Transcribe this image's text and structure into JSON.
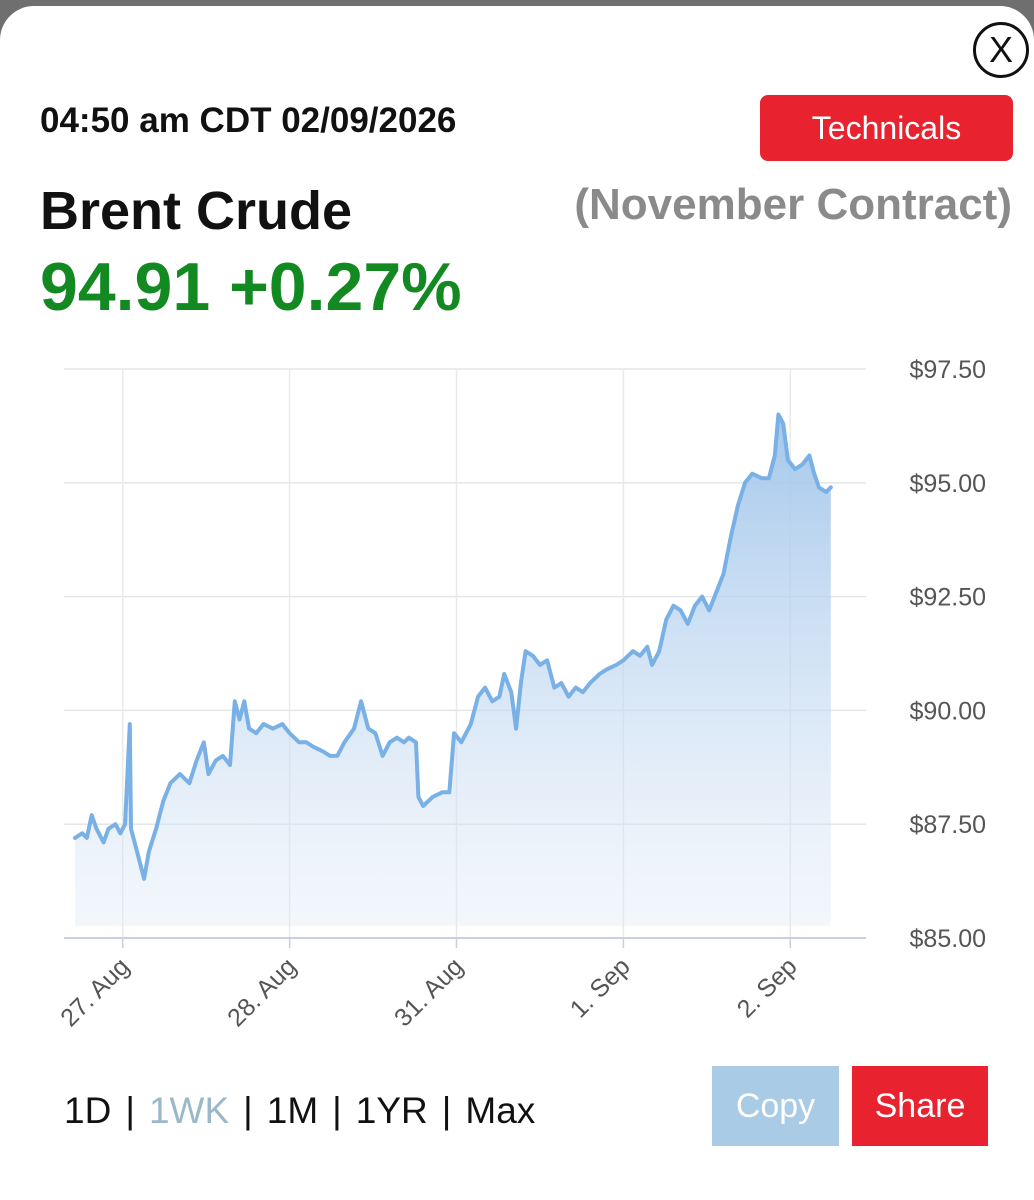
{
  "header": {
    "close_label": "X",
    "timestamp": "04:50 am CDT 02/09/2026",
    "technicals_label": "Technicals",
    "instrument": "Brent Crude",
    "contract": "(November Contract)",
    "price": "94.91",
    "change": "+0.27%"
  },
  "colors": {
    "up": "#138a21",
    "accent_red": "#e8232f",
    "line": "#79b0e6",
    "copy_button": "#a9cbe6"
  },
  "ranges": {
    "items": [
      "1D",
      "1WK",
      "1M",
      "1YR",
      "Max"
    ],
    "active": "1WK"
  },
  "actions": {
    "copy_label": "Copy",
    "share_label": "Share"
  },
  "chart_data": {
    "type": "area",
    "title": "",
    "xlabel": "",
    "ylabel": "",
    "ylim": [
      85,
      97.5
    ],
    "y_ticks": [
      97.5,
      95,
      92.5,
      90,
      87.5,
      85
    ],
    "y_tick_labels": [
      "$97.50",
      "$95.00",
      "$92.50",
      "$90.00",
      "$87.50",
      "$85.00"
    ],
    "x_ticks": [
      {
        "label": "27. Aug",
        "x": 2.0
      },
      {
        "label": "28. Aug",
        "x": 9.0
      },
      {
        "label": "31. Aug",
        "x": 16.0
      },
      {
        "label": "1. Sep",
        "x": 23.0
      },
      {
        "label": "2. Sep",
        "x": 30.0
      }
    ],
    "xlim": [
      0,
      32
    ],
    "grid": true,
    "series": [
      {
        "values": [
          [
            0.0,
            87.2
          ],
          [
            0.3,
            87.3
          ],
          [
            0.5,
            87.2
          ],
          [
            0.7,
            87.7
          ],
          [
            0.9,
            87.4
          ],
          [
            1.2,
            87.1
          ],
          [
            1.4,
            87.4
          ],
          [
            1.7,
            87.5
          ],
          [
            1.9,
            87.3
          ],
          [
            2.1,
            87.5
          ],
          [
            2.3,
            89.7
          ],
          [
            2.35,
            87.4
          ],
          [
            2.6,
            86.9
          ],
          [
            2.9,
            86.3
          ],
          [
            3.1,
            86.9
          ],
          [
            3.4,
            87.4
          ],
          [
            3.7,
            88.0
          ],
          [
            4.0,
            88.4
          ],
          [
            4.4,
            88.6
          ],
          [
            4.8,
            88.4
          ],
          [
            5.1,
            88.9
          ],
          [
            5.4,
            89.3
          ],
          [
            5.6,
            88.6
          ],
          [
            5.9,
            88.9
          ],
          [
            6.2,
            89.0
          ],
          [
            6.5,
            88.8
          ],
          [
            6.7,
            90.2
          ],
          [
            6.9,
            89.8
          ],
          [
            7.1,
            90.2
          ],
          [
            7.3,
            89.6
          ],
          [
            7.6,
            89.5
          ],
          [
            7.9,
            89.7
          ],
          [
            8.3,
            89.6
          ],
          [
            8.7,
            89.7
          ],
          [
            9.0,
            89.5
          ],
          [
            9.4,
            89.3
          ],
          [
            9.7,
            89.3
          ],
          [
            10.0,
            89.2
          ],
          [
            10.4,
            89.1
          ],
          [
            10.7,
            89.0
          ],
          [
            11.0,
            89.0
          ],
          [
            11.3,
            89.3
          ],
          [
            11.7,
            89.6
          ],
          [
            12.0,
            90.2
          ],
          [
            12.3,
            89.6
          ],
          [
            12.6,
            89.5
          ],
          [
            12.9,
            89.0
          ],
          [
            13.2,
            89.3
          ],
          [
            13.5,
            89.4
          ],
          [
            13.8,
            89.3
          ],
          [
            14.0,
            89.4
          ],
          [
            14.3,
            89.3
          ],
          [
            14.4,
            88.1
          ],
          [
            14.6,
            87.9
          ],
          [
            15.0,
            88.1
          ],
          [
            15.4,
            88.2
          ],
          [
            15.7,
            88.2
          ],
          [
            15.9,
            89.5
          ],
          [
            16.2,
            89.3
          ],
          [
            16.6,
            89.7
          ],
          [
            16.9,
            90.3
          ],
          [
            17.2,
            90.5
          ],
          [
            17.5,
            90.2
          ],
          [
            17.8,
            90.3
          ],
          [
            18.0,
            90.8
          ],
          [
            18.3,
            90.4
          ],
          [
            18.5,
            89.6
          ],
          [
            18.7,
            90.6
          ],
          [
            18.9,
            91.3
          ],
          [
            19.2,
            91.2
          ],
          [
            19.5,
            91.0
          ],
          [
            19.8,
            91.1
          ],
          [
            20.1,
            90.5
          ],
          [
            20.4,
            90.6
          ],
          [
            20.7,
            90.3
          ],
          [
            21.0,
            90.5
          ],
          [
            21.3,
            90.4
          ],
          [
            21.6,
            90.6
          ],
          [
            22.0,
            90.8
          ],
          [
            22.3,
            90.9
          ],
          [
            22.7,
            91.0
          ],
          [
            23.0,
            91.1
          ],
          [
            23.4,
            91.3
          ],
          [
            23.7,
            91.2
          ],
          [
            24.0,
            91.4
          ],
          [
            24.2,
            91.0
          ],
          [
            24.5,
            91.3
          ],
          [
            24.8,
            92.0
          ],
          [
            25.1,
            92.3
          ],
          [
            25.4,
            92.2
          ],
          [
            25.7,
            91.9
          ],
          [
            26.0,
            92.3
          ],
          [
            26.3,
            92.5
          ],
          [
            26.6,
            92.2
          ],
          [
            26.9,
            92.6
          ],
          [
            27.2,
            93.0
          ],
          [
            27.5,
            93.8
          ],
          [
            27.8,
            94.5
          ],
          [
            28.1,
            95.0
          ],
          [
            28.4,
            95.2
          ],
          [
            28.8,
            95.1
          ],
          [
            29.1,
            95.1
          ],
          [
            29.35,
            95.6
          ],
          [
            29.5,
            96.5
          ],
          [
            29.7,
            96.3
          ],
          [
            29.9,
            95.5
          ],
          [
            30.2,
            95.3
          ],
          [
            30.5,
            95.4
          ],
          [
            30.8,
            95.6
          ],
          [
            31.0,
            95.2
          ],
          [
            31.2,
            94.9
          ],
          [
            31.5,
            94.8
          ],
          [
            31.7,
            94.9
          ]
        ]
      }
    ]
  }
}
